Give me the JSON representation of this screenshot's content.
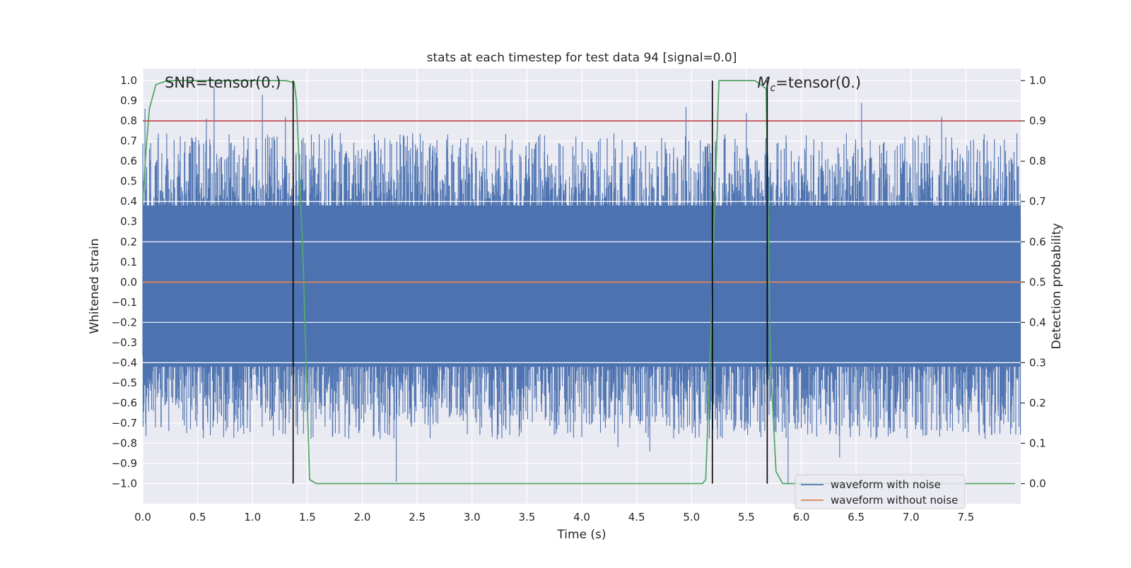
{
  "chart_data": {
    "type": "line",
    "title": "stats at each timestep for test data 94 [signal=0.0]",
    "xlabel": "Time (s)",
    "ylabel_left": "Whitened strain",
    "ylabel_right": "Detection probability",
    "xlim": [
      0.0,
      8.0
    ],
    "ylim_left": [
      -1.1,
      1.06
    ],
    "ylim_right": [
      -0.05,
      1.03
    ],
    "x_ticks": [
      "0.0",
      "0.5",
      "1.0",
      "1.5",
      "2.0",
      "2.5",
      "3.0",
      "3.5",
      "4.0",
      "4.5",
      "5.0",
      "5.5",
      "6.0",
      "6.5",
      "7.0",
      "7.5"
    ],
    "y_ticks_left": [
      "1.0",
      "0.9",
      "0.8",
      "0.7",
      "0.6",
      "0.5",
      "0.4",
      "0.3",
      "0.2",
      "0.1",
      "0.0",
      "−0.1",
      "−0.2",
      "−0.3",
      "−0.4",
      "−0.5",
      "−0.6",
      "−0.7",
      "−0.8",
      "−0.9",
      "−1.0"
    ],
    "y_ticks_right": [
      "1.0",
      "0.9",
      "0.8",
      "0.7",
      "0.6",
      "0.5",
      "0.4",
      "0.3",
      "0.2",
      "0.1",
      "0.0"
    ],
    "annotations": [
      {
        "label": "SNR=tensor(0.)",
        "x": 0.2,
        "y": 0.99
      },
      {
        "label_main": "M",
        "label_sub": "c",
        "label_rest": "=tensor(0.)",
        "x": 5.6,
        "y": 0.99
      }
    ],
    "legend": {
      "placement": "lower-right",
      "entries": [
        {
          "name": "waveform with noise",
          "color": "#4c72b0"
        },
        {
          "name": "waveform without noise",
          "color": "#dd8452"
        }
      ]
    },
    "series": [
      {
        "name": "waveform with noise",
        "axis": "left",
        "color": "#4c72b0",
        "noise_band": [
          -0.42,
          0.38
        ],
        "notable_peaks": [
          {
            "x": 0.02,
            "y": 0.86
          },
          {
            "x": 0.58,
            "y": 0.81
          },
          {
            "x": 0.65,
            "y": 0.97
          },
          {
            "x": 1.09,
            "y": 0.93
          },
          {
            "x": 1.3,
            "y": 0.82
          },
          {
            "x": 4.95,
            "y": 0.87
          },
          {
            "x": 5.5,
            "y": 0.84
          },
          {
            "x": 6.55,
            "y": 0.89
          },
          {
            "x": 7.28,
            "y": 0.82
          },
          {
            "x": 0.4,
            "y": -0.75
          },
          {
            "x": 0.76,
            "y": -0.74
          },
          {
            "x": 2.31,
            "y": -0.99
          },
          {
            "x": 3.23,
            "y": -0.78
          },
          {
            "x": 4.33,
            "y": -0.82
          },
          {
            "x": 4.62,
            "y": -0.84
          },
          {
            "x": 5.88,
            "y": -1.0
          },
          {
            "x": 6.35,
            "y": -0.87
          }
        ]
      },
      {
        "name": "waveform without noise",
        "axis": "left",
        "color": "#dd8452",
        "x": [
          0.0,
          8.0
        ],
        "y": [
          0.0,
          0.0
        ]
      },
      {
        "name": "detection probability",
        "axis": "right",
        "color": "#55a868",
        "x": [
          0.0,
          0.03,
          0.06,
          0.12,
          0.22,
          1.3,
          1.38,
          1.4,
          1.46,
          1.49,
          1.52,
          1.58,
          1.7,
          5.05,
          5.1,
          5.13,
          5.18,
          5.2,
          5.25,
          5.58,
          5.68,
          5.72,
          5.77,
          5.83,
          5.88,
          7.95
        ],
        "y": [
          0.7,
          0.83,
          0.93,
          0.99,
          1.0,
          1.0,
          0.995,
          0.95,
          0.56,
          0.28,
          0.01,
          0.0,
          0.0,
          0.0,
          0.0,
          0.01,
          0.4,
          0.6,
          1.0,
          1.0,
          0.98,
          0.3,
          0.03,
          0.0,
          0.0,
          0.0
        ]
      },
      {
        "name": "threshold",
        "axis": "right",
        "color": "#c44e52",
        "x": [
          0.0,
          8.0
        ],
        "y": [
          0.9,
          0.9
        ]
      }
    ],
    "vertical_markers": [
      1.37,
      5.19,
      5.69
    ],
    "vertical_marker_range_right": [
      0.0,
      1.0
    ]
  }
}
